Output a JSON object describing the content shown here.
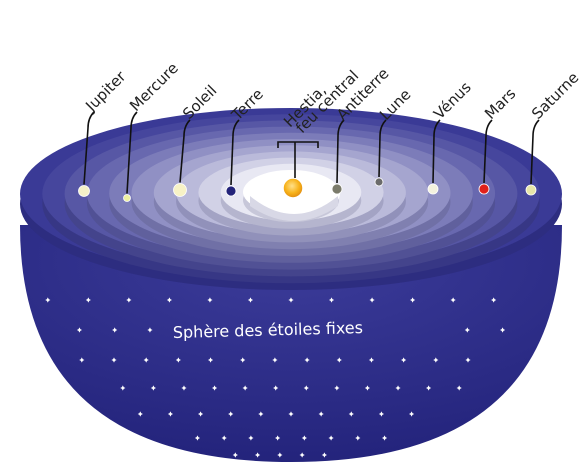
{
  "diagram": {
    "sphere_label": "Sphère des étoiles fixes",
    "center_label_line1": "Hestia,",
    "center_label_line2": "feu central",
    "bodies": [
      {
        "id": "jupiter",
        "label": "Jupiter",
        "color": "#f4f1c8"
      },
      {
        "id": "mercure",
        "label": "Mercure",
        "color": "#eef0a0"
      },
      {
        "id": "soleil",
        "label": "Soleil",
        "color": "#f7f2c6"
      },
      {
        "id": "terre",
        "label": "Terre",
        "color": "#23237a"
      },
      {
        "id": "antiterre",
        "label": "Antiterre",
        "color": "#7b7b6b"
      },
      {
        "id": "lune",
        "label": "Lune",
        "color": "#6b6b6b"
      },
      {
        "id": "venus",
        "label": "Vénus",
        "color": "#f4f2de"
      },
      {
        "id": "mars",
        "label": "Mars",
        "color": "#e0201a"
      },
      {
        "id": "saturne",
        "label": "Saturne",
        "color": "#e7e6a8"
      }
    ],
    "colors": {
      "sphere": "#2e2e86",
      "ring_outer": "#3a3a96",
      "ring_inner": "#ffffff",
      "fire": "#f7b21a",
      "star": "#ffffff"
    }
  }
}
